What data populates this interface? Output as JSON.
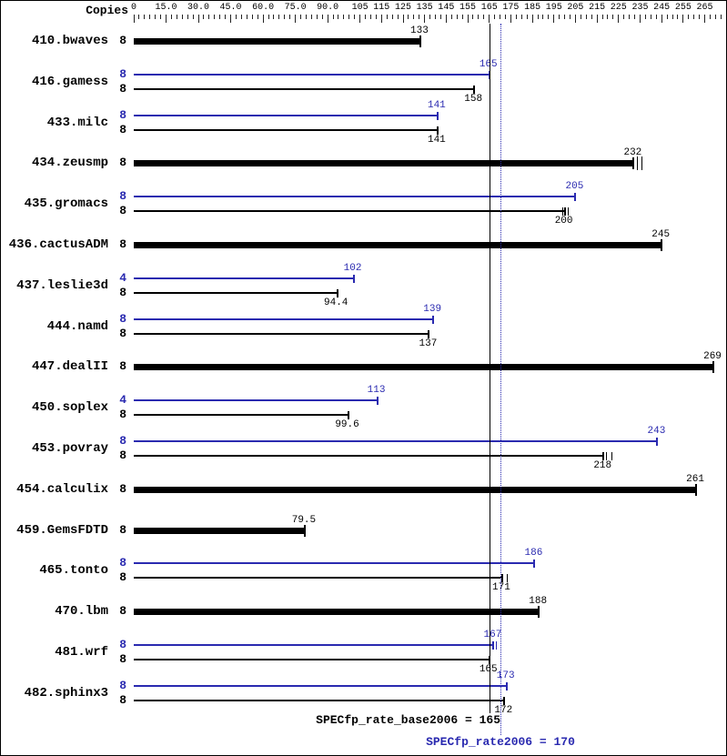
{
  "header": {
    "copies_label": "Copies"
  },
  "axis": {
    "labels": [
      {
        "text": "0",
        "value": 0
      },
      {
        "text": "15.0",
        "value": 15
      },
      {
        "text": "30.0",
        "value": 30
      },
      {
        "text": "45.0",
        "value": 45
      },
      {
        "text": "60.0",
        "value": 60
      },
      {
        "text": "75.0",
        "value": 75
      },
      {
        "text": "90.0",
        "value": 90
      },
      {
        "text": "105",
        "value": 105
      },
      {
        "text": "115",
        "value": 115
      },
      {
        "text": "125",
        "value": 125
      },
      {
        "text": "135",
        "value": 135
      },
      {
        "text": "145",
        "value": 145
      },
      {
        "text": "155",
        "value": 155
      },
      {
        "text": "165",
        "value": 165
      },
      {
        "text": "175",
        "value": 175
      },
      {
        "text": "185",
        "value": 185
      },
      {
        "text": "195",
        "value": 195
      },
      {
        "text": "205",
        "value": 205
      },
      {
        "text": "215",
        "value": 215
      },
      {
        "text": "225",
        "value": 225
      },
      {
        "text": "235",
        "value": 235
      },
      {
        "text": "245",
        "value": 245
      },
      {
        "text": "255",
        "value": 255
      },
      {
        "text": "265",
        "value": 265
      }
    ],
    "minor_step": 2.5,
    "max": 272.5
  },
  "colors": {
    "peak": "#2a2ab0",
    "base": "#000000"
  },
  "chart_data": {
    "type": "bar",
    "orientation": "horizontal",
    "title": "SPECfp_rate2006 results by benchmark",
    "xlabel": "",
    "ylabel": "Copies",
    "xlim": [
      0,
      272.5
    ],
    "legend": {
      "peak_color_meaning": "peak result",
      "base_color_meaning": "base result"
    },
    "benchmarks": [
      {
        "name": "410.bwaves",
        "bars": [
          {
            "kind": "base",
            "copies": "8",
            "value": 133,
            "label": "133",
            "thick": true
          }
        ]
      },
      {
        "name": "416.gamess",
        "bars": [
          {
            "kind": "peak",
            "copies": "8",
            "value": 165,
            "label": "165"
          },
          {
            "kind": "base",
            "copies": "8",
            "value": 158,
            "label": "158"
          }
        ]
      },
      {
        "name": "433.milc",
        "bars": [
          {
            "kind": "peak",
            "copies": "8",
            "value": 141,
            "label": "141"
          },
          {
            "kind": "base",
            "copies": "8",
            "value": 141,
            "label": "141"
          }
        ]
      },
      {
        "name": "434.zeusmp",
        "bars": [
          {
            "kind": "base",
            "copies": "8",
            "value": 232,
            "label": "232",
            "thick": true,
            "marks": [
              233.5,
              235.5
            ]
          }
        ]
      },
      {
        "name": "435.gromacs",
        "bars": [
          {
            "kind": "peak",
            "copies": "8",
            "value": 205,
            "label": "205"
          },
          {
            "kind": "base",
            "copies": "8",
            "value": 200,
            "label": "200",
            "marks": [
              199,
              201.5
            ]
          }
        ]
      },
      {
        "name": "436.cactusADM",
        "bars": [
          {
            "kind": "base",
            "copies": "8",
            "value": 245,
            "label": "245",
            "thick": true
          }
        ]
      },
      {
        "name": "437.leslie3d",
        "bars": [
          {
            "kind": "peak",
            "copies": "4",
            "value": 102,
            "label": "102"
          },
          {
            "kind": "base",
            "copies": "8",
            "value": 94.4,
            "label": "94.4"
          }
        ]
      },
      {
        "name": "444.namd",
        "bars": [
          {
            "kind": "peak",
            "copies": "8",
            "value": 139,
            "label": "139"
          },
          {
            "kind": "base",
            "copies": "8",
            "value": 137,
            "label": "137"
          }
        ]
      },
      {
        "name": "447.dealII",
        "bars": [
          {
            "kind": "base",
            "copies": "8",
            "value": 269,
            "label": "269",
            "thick": true
          }
        ]
      },
      {
        "name": "450.soplex",
        "bars": [
          {
            "kind": "peak",
            "copies": "4",
            "value": 113,
            "label": "113"
          },
          {
            "kind": "base",
            "copies": "8",
            "value": 99.6,
            "label": "99.6"
          }
        ]
      },
      {
        "name": "453.povray",
        "bars": [
          {
            "kind": "peak",
            "copies": "8",
            "value": 243,
            "label": "243"
          },
          {
            "kind": "base",
            "copies": "8",
            "value": 218,
            "label": "218",
            "marks": [
              219,
              221.5
            ]
          }
        ]
      },
      {
        "name": "454.calculix",
        "bars": [
          {
            "kind": "base",
            "copies": "8",
            "value": 261,
            "label": "261",
            "thick": true
          }
        ]
      },
      {
        "name": "459.GemsFDTD",
        "bars": [
          {
            "kind": "base",
            "copies": "8",
            "value": 79.5,
            "label": "79.5",
            "thick": true
          }
        ]
      },
      {
        "name": "465.tonto",
        "bars": [
          {
            "kind": "peak",
            "copies": "8",
            "value": 186,
            "label": "186"
          },
          {
            "kind": "base",
            "copies": "8",
            "value": 171,
            "label": "171",
            "marks": [
              173
            ]
          }
        ]
      },
      {
        "name": "470.lbm",
        "bars": [
          {
            "kind": "base",
            "copies": "8",
            "value": 188,
            "label": "188",
            "thick": true
          }
        ]
      },
      {
        "name": "481.wrf",
        "bars": [
          {
            "kind": "peak",
            "copies": "8",
            "value": 167,
            "label": "167",
            "marks": [
              168
            ]
          },
          {
            "kind": "base",
            "copies": "8",
            "value": 165,
            "label": "165"
          }
        ]
      },
      {
        "name": "482.sphinx3",
        "bars": [
          {
            "kind": "peak",
            "copies": "8",
            "value": 173,
            "label": "173"
          },
          {
            "kind": "base",
            "copies": "8",
            "value": 172,
            "label": "172"
          }
        ]
      }
    ],
    "reference_lines": {
      "base": {
        "value": 165,
        "label": "SPECfp_rate_base2006 = 165"
      },
      "peak": {
        "value": 170,
        "label": "SPECfp_rate2006 = 170"
      }
    }
  }
}
